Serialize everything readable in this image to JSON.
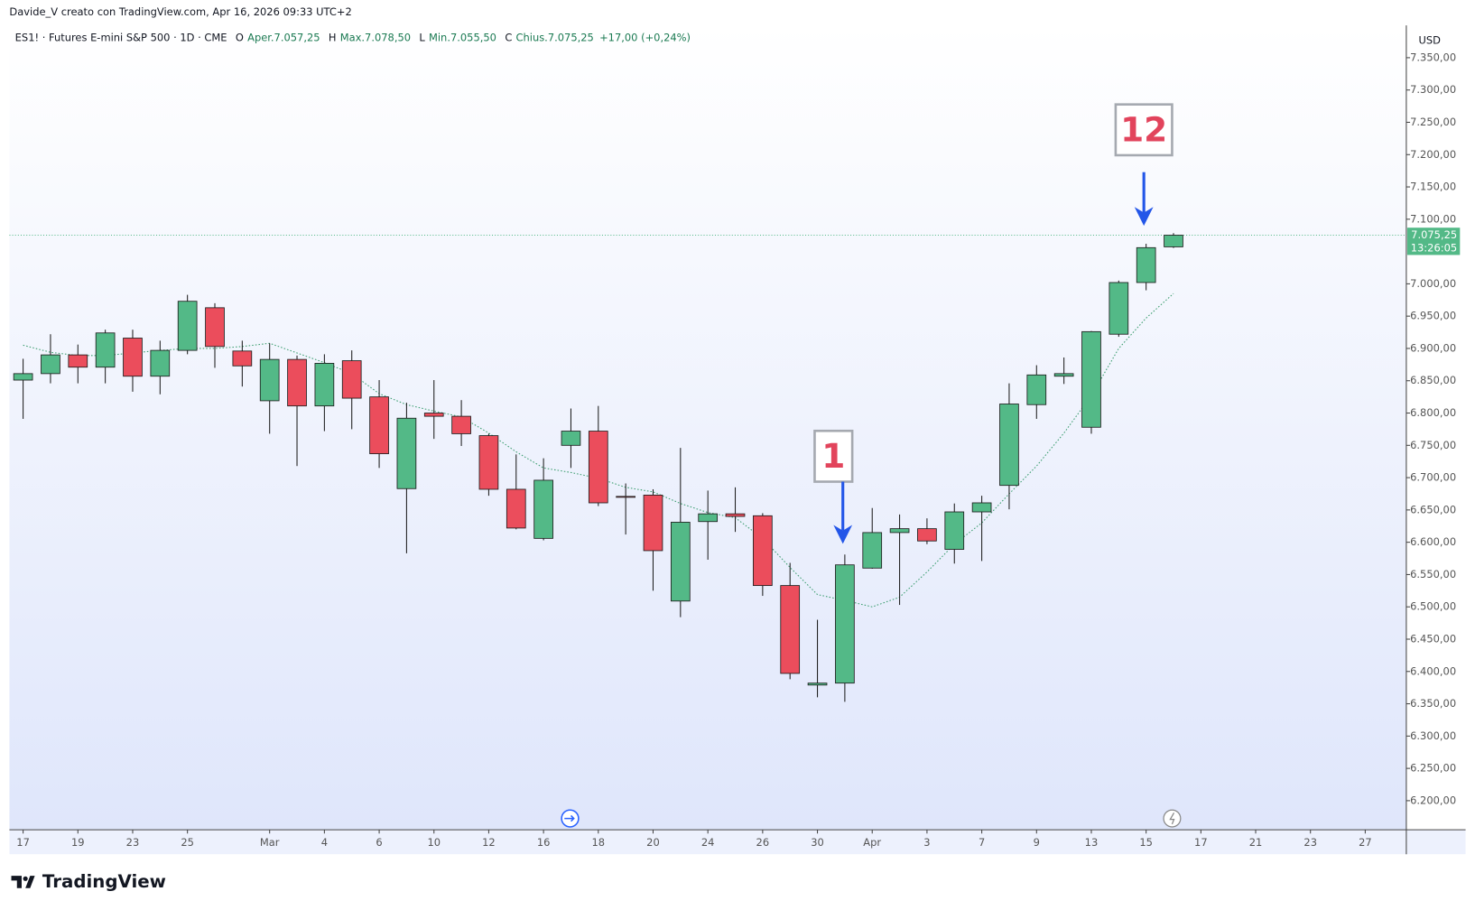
{
  "chart_data": {
    "type": "candlestick",
    "credit": "Davide_V creato con TradingView.com, Apr 16, 2026 09:33 UTC+2",
    "title": "ES1! · Futures E-mini S&P 500 · 1D · CME",
    "legend": [
      {
        "key": "O",
        "text": "Aper.7.057,25"
      },
      {
        "key": "H",
        "text": "Max.7.078,50"
      },
      {
        "key": "L",
        "text": "Min.7.055,50"
      },
      {
        "key": "C",
        "text": "Chius.7.075,25"
      }
    ],
    "change": "+17,00 (+0,24%)",
    "currency": "USD",
    "up_color": "#53b987",
    "down_color": "#eb4d5c",
    "open": [
      6851,
      6861,
      6890,
      6871,
      6916,
      6857,
      6897,
      6963,
      6896,
      6819,
      6883,
      6811,
      6881,
      6825,
      6683,
      6800,
      6795,
      6765,
      6682,
      6606,
      6750,
      6772,
      6671,
      6673,
      6509,
      6632,
      6644,
      6641,
      6533,
      6379,
      6382,
      6560,
      6615,
      6621,
      6589,
      6647,
      6688,
      6813,
      6857,
      6778,
      6922,
      7002,
      7057.25
    ],
    "high": [
      6884,
      6922,
      6906,
      6929,
      6929,
      6912,
      6983,
      6970,
      6912,
      6908,
      6889,
      6891,
      6897,
      6851,
      6816,
      6851,
      6820,
      6768,
      6736,
      6730,
      6807,
      6811,
      6691,
      6682,
      6746,
      6680,
      6685,
      6645,
      6568,
      6480,
      6581,
      6653,
      6643,
      6637,
      6660,
      6672,
      6846,
      6874,
      6886,
      6927,
      7005,
      7062,
      7078.5
    ],
    "low": [
      6791,
      6846,
      6846,
      6846,
      6833,
      6829,
      6891,
      6870,
      6841,
      6768,
      6718,
      6772,
      6775,
      6715,
      6583,
      6760,
      6749,
      6672,
      6620,
      6603,
      6715,
      6656,
      6612,
      6525,
      6484,
      6573,
      6616,
      6517,
      6388,
      6360,
      6353,
      6559,
      6503,
      6597,
      6567,
      6571,
      6651,
      6791,
      6845,
      6768,
      6918,
      6990,
      7055.5
    ],
    "close": [
      6861,
      6890,
      6871,
      6924,
      6857,
      6897,
      6973,
      6903,
      6873,
      6883,
      6811,
      6877,
      6823,
      6737,
      6792,
      6795,
      6768,
      6682,
      6622,
      6696,
      6772,
      6661,
      6670,
      6587,
      6631,
      6644,
      6640,
      6533,
      6397,
      6382,
      6565,
      6615,
      6621,
      6602,
      6647,
      6661,
      6814,
      6859,
      6861,
      6926,
      7002,
      7056,
      7075.25
    ],
    "ma": {
      "color": "#3a9d6e",
      "values": [
        6905,
        6894,
        6889,
        6889,
        6893,
        6897,
        6900,
        6900,
        6903,
        6908,
        6893,
        6878,
        6861,
        6830,
        6813,
        6803,
        6794,
        6769,
        6740,
        6715,
        6708,
        6699,
        6685,
        6678,
        6660,
        6646,
        6638,
        6606,
        6561,
        6519,
        6510,
        6500,
        6515,
        6554,
        6597,
        6630,
        6675,
        6718,
        6769,
        6827,
        6900,
        6947,
        6985
      ]
    },
    "xlim": [
      -0.5,
      50.5
    ],
    "ylim": [
      6155,
      7400
    ],
    "xticks": [
      {
        "value": 0,
        "label": "17"
      },
      {
        "value": 2,
        "label": "19"
      },
      {
        "value": 4,
        "label": "23"
      },
      {
        "value": 6,
        "label": "25"
      },
      {
        "value": 9,
        "label": "Mar"
      },
      {
        "value": 11,
        "label": "4"
      },
      {
        "value": 13,
        "label": "6"
      },
      {
        "value": 15,
        "label": "10"
      },
      {
        "value": 17,
        "label": "12"
      },
      {
        "value": 19,
        "label": "16"
      },
      {
        "value": 21,
        "label": "18"
      },
      {
        "value": 23,
        "label": "20"
      },
      {
        "value": 25,
        "label": "24"
      },
      {
        "value": 27,
        "label": "26"
      },
      {
        "value": 29,
        "label": "30"
      },
      {
        "value": 31,
        "label": "Apr"
      },
      {
        "value": 33,
        "label": "3"
      },
      {
        "value": 35,
        "label": "7"
      },
      {
        "value": 37,
        "label": "9"
      },
      {
        "value": 39,
        "label": "13"
      },
      {
        "value": 41,
        "label": "15"
      },
      {
        "value": 43,
        "label": "17"
      },
      {
        "value": 45,
        "label": "21"
      },
      {
        "value": 47,
        "label": "23"
      },
      {
        "value": 49,
        "label": "27"
      }
    ],
    "yticks": [
      {
        "value": 7350,
        "label": "7.350,00"
      },
      {
        "value": 7300,
        "label": "7.300,00"
      },
      {
        "value": 7250,
        "label": "7.250,00"
      },
      {
        "value": 7200,
        "label": "7.200,00"
      },
      {
        "value": 7150,
        "label": "7.150,00"
      },
      {
        "value": 7100,
        "label": "7.100,00"
      },
      {
        "value": 7000,
        "label": "7.000,00"
      },
      {
        "value": 6950,
        "label": "6.950,00"
      },
      {
        "value": 6900,
        "label": "6.900,00"
      },
      {
        "value": 6850,
        "label": "6.850,00"
      },
      {
        "value": 6800,
        "label": "6.800,00"
      },
      {
        "value": 6750,
        "label": "6.750,00"
      },
      {
        "value": 6700,
        "label": "6.700,00"
      },
      {
        "value": 6650,
        "label": "6.650,00"
      },
      {
        "value": 6600,
        "label": "6.600,00"
      },
      {
        "value": 6550,
        "label": "6.550,00"
      },
      {
        "value": 6500,
        "label": "6.500,00"
      },
      {
        "value": 6450,
        "label": "6.450,00"
      },
      {
        "value": 6400,
        "label": "6.400,00"
      },
      {
        "value": 6350,
        "label": "6.350,00"
      },
      {
        "value": 6300,
        "label": "6.300,00"
      },
      {
        "value": 6250,
        "label": "6.250,00"
      },
      {
        "value": 6200,
        "label": "6.200,00"
      }
    ],
    "last_price": {
      "value": 7075.25,
      "label": "7.075,25"
    },
    "countdown": "13:26:05",
    "annotations": [
      "1",
      "12"
    ],
    "brand": "TradingView"
  }
}
